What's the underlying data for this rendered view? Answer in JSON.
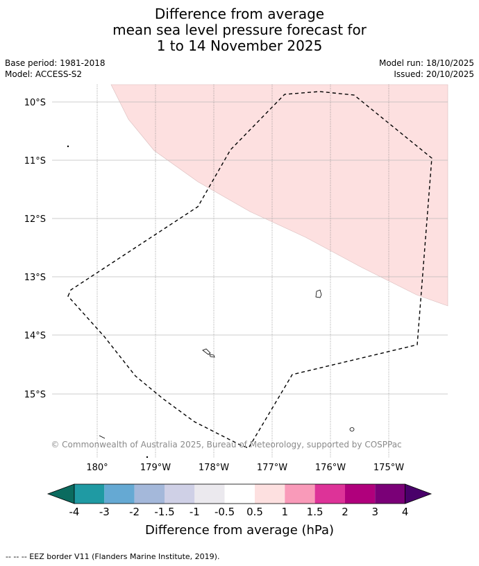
{
  "title": {
    "line1": "Difference from average",
    "line2": "mean sea level pressure forecast for",
    "line3": "1 to 14 November 2025"
  },
  "meta": {
    "base_period": "Base period: 1981-2018",
    "model": "Model: ACCESS-S2",
    "model_run": "Model run: 18/10/2025",
    "issued": "Issued: 20/10/2025"
  },
  "map": {
    "lat_labels": [
      "10°S",
      "11°S",
      "12°S",
      "13°S",
      "14°S",
      "15°S"
    ],
    "lon_labels": [
      "180°",
      "179°W",
      "178°W",
      "177°W",
      "176°W",
      "175°W"
    ],
    "copyright": "© Commonwealth of Australia 2025, Bureau of Meteorology, supported by COSPPac",
    "anomaly_region_category": "0.5 to 1"
  },
  "legend": {
    "title": "Difference from average (hPa)",
    "ticks": [
      "-4",
      "-3",
      "-2",
      "-1.5",
      "-1",
      "-0.5",
      "0.5",
      "1",
      "1.5",
      "2",
      "3",
      "4"
    ],
    "colors": {
      "below_min": "#0b6b5f",
      "-4_-3": "#1f9aa3",
      "-3_-2": "#65a9d3",
      "-2_-1.5": "#a4b8da",
      "-1.5_-1": "#cfd0e6",
      "-1_-0.5": "#ebe9ee",
      "-0.5_0.5": "#ffffff",
      "0.5_1": "#fde0e0",
      "1_1.5": "#f99ab9",
      "1.5_2": "#dd3398",
      "2_3": "#b0007c",
      "3_4": "#7a0077",
      "above_max": "#49006a"
    }
  },
  "footnote": "--  --  -- EEZ border V11 (Flanders Marine Institute, 2019)."
}
